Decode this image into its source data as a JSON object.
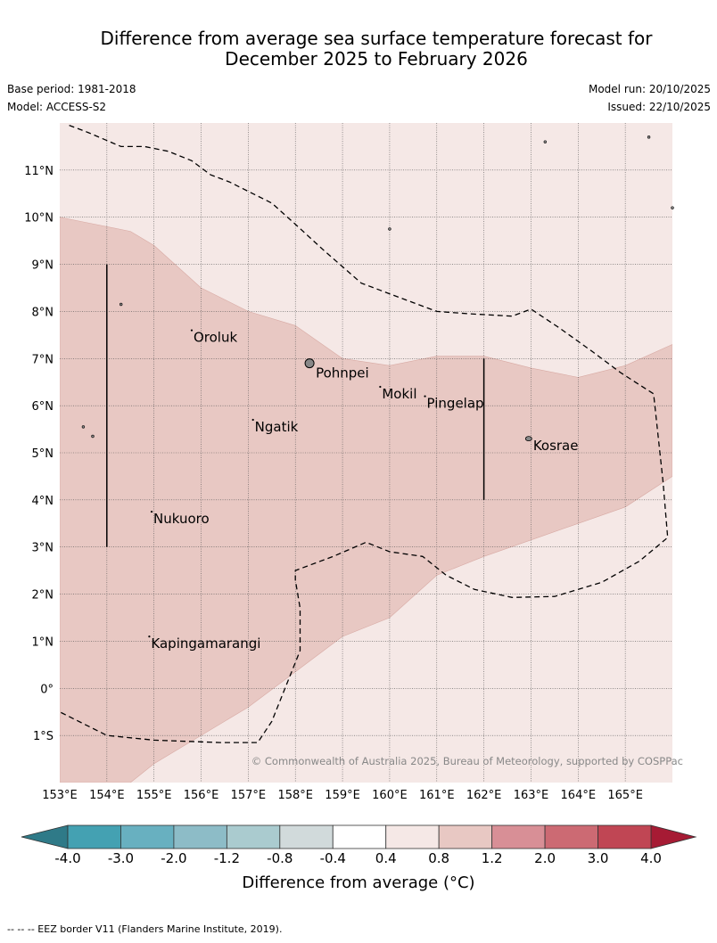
{
  "title_line1": "Difference from average sea surface temperature forecast for",
  "title_line2": "December 2025 to February 2026",
  "base_period": "Base period: 1981-2018",
  "model": "Model: ACCESS-S2",
  "model_run": "Model run: 20/10/2025",
  "issued": "Issued: 22/10/2025",
  "copyright": "© Commonwealth of Australia 2025, Bureau of Meteorology, supported by COSPPac",
  "colorbar_title": "Difference from average (°C)",
  "footer": "--  --  -- EEZ border V11 (Flanders Marine Institute, 2019).",
  "map": {
    "lon_range": [
      153,
      166
    ],
    "lat_range": [
      -2,
      12
    ],
    "lon_ticks": [
      "153°E",
      "154°E",
      "155°E",
      "156°E",
      "157°E",
      "158°E",
      "159°E",
      "160°E",
      "161°E",
      "162°E",
      "163°E",
      "164°E",
      "165°E"
    ],
    "lat_ticks": [
      {
        "lat": 11,
        "label": "11°N"
      },
      {
        "lat": 10,
        "label": "10°N"
      },
      {
        "lat": 9,
        "label": "9°N"
      },
      {
        "lat": 8,
        "label": "8°N"
      },
      {
        "lat": 7,
        "label": "7°N"
      },
      {
        "lat": 6,
        "label": "6°N"
      },
      {
        "lat": 5,
        "label": "5°N"
      },
      {
        "lat": 4,
        "label": "4°N"
      },
      {
        "lat": 3,
        "label": "3°N"
      },
      {
        "lat": 2,
        "label": "2°N"
      },
      {
        "lat": 1,
        "label": "1°N"
      },
      {
        "lat": 0,
        "label": "0°"
      },
      {
        "lat": -1,
        "label": "1°S"
      }
    ],
    "background_class": {
      "range": "0.4 to 0.8",
      "color": "#f5e8e6"
    },
    "warm_band": {
      "range": "0.8 to 1.2",
      "color": "#e8c8c3",
      "polygon": [
        [
          153,
          10
        ],
        [
          153.5,
          9.9
        ],
        [
          154.5,
          9.7
        ],
        [
          155,
          9.4
        ],
        [
          156,
          8.5
        ],
        [
          157,
          8.0
        ],
        [
          158,
          7.7
        ],
        [
          159,
          7.0
        ],
        [
          160,
          6.85
        ],
        [
          161,
          7.05
        ],
        [
          162,
          7.05
        ],
        [
          163,
          6.8
        ],
        [
          164,
          6.6
        ],
        [
          165,
          6.85
        ],
        [
          166,
          7.3
        ],
        [
          166,
          4.5
        ],
        [
          165,
          3.85
        ],
        [
          164,
          3.5
        ],
        [
          163,
          3.15
        ],
        [
          162,
          2.8
        ],
        [
          161,
          2.4
        ],
        [
          160,
          1.5
        ],
        [
          159,
          1.1
        ],
        [
          158,
          0.35
        ],
        [
          157,
          -0.4
        ],
        [
          156,
          -1.0
        ],
        [
          155,
          -1.6
        ],
        [
          154.5,
          -2
        ],
        [
          153,
          -2
        ]
      ]
    },
    "eez_lines": [
      [
        [
          154,
          9
        ],
        [
          154,
          3
        ]
      ],
      [
        [
          162,
          7
        ],
        [
          162,
          4
        ]
      ]
    ],
    "eez_dashed": [
      [
        [
          153.2,
          11.95
        ],
        [
          153.6,
          11.8
        ],
        [
          154.3,
          11.5
        ],
        [
          154.8,
          11.5
        ],
        [
          155.3,
          11.4
        ],
        [
          155.8,
          11.2
        ],
        [
          156.2,
          10.9
        ],
        [
          156.6,
          10.75
        ],
        [
          157.3,
          10.4
        ],
        [
          157.5,
          10.3
        ],
        [
          158,
          9.85
        ],
        [
          158.6,
          9.3
        ],
        [
          159.4,
          8.6
        ],
        [
          160.2,
          8.3
        ],
        [
          161,
          8.0
        ],
        [
          161.7,
          7.95
        ],
        [
          162.6,
          7.9
        ],
        [
          163,
          8.05
        ],
        [
          163.6,
          7.65
        ],
        [
          164.3,
          7.15
        ],
        [
          164.9,
          6.7
        ],
        [
          165.6,
          6.25
        ],
        [
          165.8,
          4.4
        ],
        [
          165.9,
          3.2
        ],
        [
          165.3,
          2.7
        ],
        [
          164.5,
          2.25
        ],
        [
          163.5,
          1.95
        ],
        [
          162.6,
          1.93
        ],
        [
          161.8,
          2.1
        ],
        [
          161.2,
          2.4
        ],
        [
          160.7,
          2.8
        ],
        [
          160,
          2.9
        ],
        [
          159.5,
          3.1
        ],
        [
          158.8,
          2.8
        ],
        [
          158,
          2.5
        ],
        [
          158,
          2.3
        ],
        [
          158.1,
          1.7
        ],
        [
          158.1,
          0.8
        ],
        [
          157.5,
          -0.7
        ],
        [
          157.2,
          -1.15
        ],
        [
          156.4,
          -1.15
        ],
        [
          155,
          -1.1
        ],
        [
          154,
          -1.0
        ],
        [
          153,
          -0.5
        ]
      ]
    ],
    "islands": [
      {
        "name": "Oroluk",
        "lon": 155.8,
        "lat": 7.6
      },
      {
        "name": "Pohnpei",
        "lon": 158.3,
        "lat": 6.9
      },
      {
        "name": "Mokil",
        "lon": 159.8,
        "lat": 6.4
      },
      {
        "name": "Pingelap",
        "lon": 160.75,
        "lat": 6.2
      },
      {
        "name": "Ngatik",
        "lon": 157.1,
        "lat": 5.7
      },
      {
        "name": "Kosrae",
        "lon": 162.95,
        "lat": 5.3
      },
      {
        "name": "Nukuoro",
        "lon": 154.95,
        "lat": 3.75
      },
      {
        "name": "Kapingamarangi",
        "lon": 154.9,
        "lat": 1.1
      }
    ]
  },
  "colorbar": {
    "bins": [
      {
        "color": "#44a1b2"
      },
      {
        "color": "#68b0c0"
      },
      {
        "color": "#8dbcc7"
      },
      {
        "color": "#aacbcf"
      },
      {
        "color": "#d1dadb"
      },
      {
        "color": "#ffffff"
      },
      {
        "color": "#f5e8e6"
      },
      {
        "color": "#e8c8c3"
      },
      {
        "color": "#d88f96"
      },
      {
        "color": "#cc6a73"
      },
      {
        "color": "#c04654"
      }
    ],
    "low_color": "#2f7a88",
    "high_color": "#a61b34",
    "tick_labels": [
      "-4.0",
      "-3.0",
      "-2.0",
      "-1.2",
      "-0.8",
      "-0.4",
      "0.4",
      "0.8",
      "1.2",
      "2.0",
      "3.0",
      "4.0"
    ]
  }
}
